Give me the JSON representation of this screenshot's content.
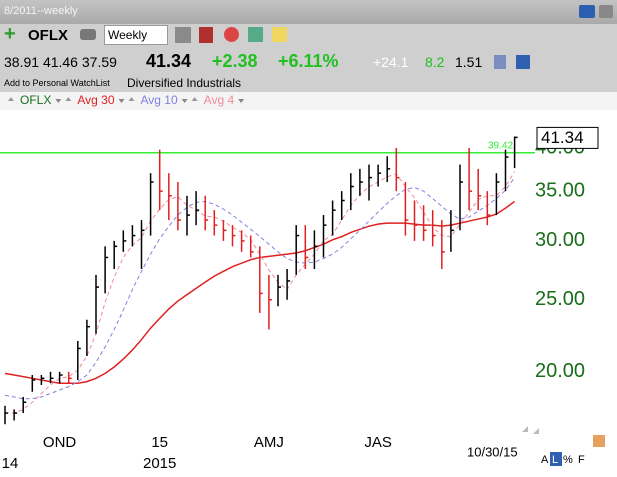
{
  "header": {
    "title": "8/2011--weekly",
    "period": "Weekly",
    "symbol": "OFLX",
    "open": "38.91",
    "high": "41.46",
    "low": "37.59",
    "last": "41.34",
    "change": "+2.38",
    "change_pct": "+6.11%",
    "stat1": "+24.1",
    "stat2": "8.2",
    "stat3": "1.51",
    "watchlist": "Add to Personal WatchList",
    "industry": "Diversified Industrials"
  },
  "chart_data": {
    "type": "ohlc",
    "categories": [
      null,
      null,
      null,
      null,
      null,
      null,
      "OND",
      null,
      null,
      null,
      null,
      null,
      null,
      null,
      null,
      null,
      null,
      "15",
      null,
      null,
      null,
      null,
      null,
      null,
      null,
      null,
      null,
      null,
      null,
      "AMJ",
      null,
      null,
      null,
      null,
      null,
      null,
      null,
      null,
      null,
      null,
      null,
      "JAS",
      null,
      null,
      null,
      null,
      null,
      null,
      null,
      null,
      null,
      null,
      null,
      null,
      null,
      null,
      null
    ],
    "category_years": [
      "14",
      null,
      null,
      null,
      null,
      null,
      null,
      null,
      null,
      null,
      null,
      null,
      null,
      null,
      null,
      null,
      null,
      "2015",
      null,
      null,
      null,
      null,
      null,
      null,
      null,
      null,
      null,
      null,
      null,
      null,
      null,
      null,
      null,
      null,
      null,
      null,
      null,
      null,
      null,
      null,
      null,
      null,
      null,
      null,
      null,
      null,
      null,
      null,
      null,
      null,
      null,
      null,
      null,
      null,
      null,
      null,
      null
    ],
    "last_date": "10/30/15",
    "series": [
      {
        "name": "OFLX",
        "color": "#000000",
        "down_color": "#e02020",
        "high": [
          18.0,
          17.8,
          18.5,
          19.8,
          19.8,
          20.0,
          20.0,
          20.0,
          22.0,
          23.5,
          27.0,
          29.5,
          30.0,
          31.0,
          31.5,
          32.0,
          37.0,
          39.8,
          37.0,
          36.0,
          34.5,
          35.0,
          34.5,
          33.0,
          32.0,
          31.5,
          31.0,
          30.5,
          29.5,
          27.0,
          27.0,
          27.5,
          31.5,
          31.5,
          31.0,
          32.5,
          34.0,
          35.0,
          37.0,
          37.5,
          38.0,
          38.0,
          39.0,
          40.0,
          36.0,
          34.0,
          33.5,
          33.0,
          32.0,
          33.0,
          38.0,
          40.0,
          37.5,
          35.0,
          37.0,
          39.8,
          41.46
        ],
        "low": [
          17.0,
          17.2,
          17.6,
          18.8,
          19.2,
          19.3,
          19.3,
          19.3,
          19.5,
          21.0,
          22.5,
          25.5,
          27.5,
          29.0,
          29.5,
          27.5,
          30.5,
          33.0,
          32.0,
          31.0,
          30.5,
          31.5,
          31.0,
          30.5,
          30.0,
          29.5,
          29.0,
          28.5,
          24.0,
          22.8,
          24.5,
          25.0,
          27.0,
          27.5,
          27.5,
          28.5,
          30.5,
          32.0,
          33.0,
          34.5,
          34.0,
          35.5,
          36.0,
          35.0,
          30.5,
          30.0,
          30.0,
          29.5,
          27.5,
          29.0,
          31.0,
          33.0,
          33.0,
          31.5,
          32.5,
          35.0,
          37.59
        ],
        "close": [
          17.6,
          17.6,
          18.2,
          19.5,
          19.6,
          19.6,
          19.8,
          19.6,
          21.5,
          23.0,
          26.0,
          28.5,
          29.5,
          30.0,
          30.5,
          31.0,
          36.0,
          35.0,
          34.5,
          32.0,
          32.5,
          33.0,
          32.0,
          31.5,
          31.0,
          30.5,
          30.0,
          29.0,
          25.5,
          25.0,
          26.0,
          26.5,
          30.5,
          28.5,
          29.5,
          31.5,
          33.0,
          34.0,
          35.5,
          36.0,
          36.5,
          37.0,
          37.5,
          36.5,
          32.0,
          31.5,
          31.0,
          30.5,
          29.0,
          31.0,
          36.0,
          35.0,
          34.5,
          32.5,
          36.0,
          38.9,
          41.34
        ]
      },
      {
        "name": "Avg 30",
        "color": "#e02020",
        "dash": false,
        "values": [
          19.9,
          19.8,
          19.7,
          19.6,
          19.5,
          19.4,
          19.3,
          19.3,
          19.3,
          19.4,
          19.6,
          19.9,
          20.3,
          20.8,
          21.4,
          22.1,
          22.9,
          23.6,
          24.3,
          24.9,
          25.4,
          25.9,
          26.4,
          26.9,
          27.3,
          27.7,
          28.0,
          28.3,
          28.5,
          28.6,
          28.7,
          28.8,
          28.9,
          29.1,
          29.4,
          29.7,
          30.1,
          30.4,
          30.8,
          31.1,
          31.4,
          31.6,
          31.7,
          31.7,
          31.7,
          31.6,
          31.5,
          31.5,
          31.4,
          31.5,
          31.7,
          31.9,
          32.1,
          32.3,
          32.6,
          33.2,
          33.9
        ]
      },
      {
        "name": "Avg 10",
        "color": "#8080e0",
        "dash": true,
        "values": [
          18.6,
          18.5,
          18.4,
          18.4,
          18.5,
          18.7,
          18.9,
          19.1,
          19.4,
          19.8,
          20.6,
          21.6,
          22.8,
          24.2,
          25.8,
          27.3,
          28.8,
          30.2,
          31.4,
          32.5,
          33.3,
          33.8,
          33.9,
          33.6,
          33.1,
          32.5,
          31.8,
          31.1,
          30.4,
          29.7,
          29.0,
          28.4,
          28.1,
          28.0,
          28.1,
          28.4,
          28.8,
          29.4,
          30.2,
          31.0,
          31.9,
          32.8,
          33.7,
          34.5,
          35.2,
          35.4,
          35.0,
          34.2,
          33.4,
          32.6,
          32.1,
          32.3,
          32.9,
          33.5,
          34.2,
          35.1,
          36.5
        ]
      },
      {
        "name": "Avg 4",
        "color": "#f08a9a",
        "dash": true,
        "values": [
          17.6,
          17.6,
          17.8,
          18.2,
          18.7,
          19.2,
          19.6,
          19.7,
          20.1,
          21.0,
          22.5,
          24.8,
          26.8,
          28.5,
          29.6,
          30.3,
          31.9,
          33.1,
          34.1,
          34.4,
          33.5,
          33.0,
          32.4,
          32.3,
          31.9,
          31.3,
          30.8,
          30.1,
          28.8,
          27.4,
          26.4,
          25.8,
          27.0,
          27.9,
          28.8,
          30.0,
          30.6,
          32.0,
          33.5,
          34.6,
          35.5,
          36.0,
          36.6,
          36.9,
          35.5,
          34.3,
          32.8,
          31.3,
          30.5,
          30.4,
          31.6,
          32.8,
          34.1,
          34.5,
          34.5,
          35.5,
          37.2
        ]
      }
    ],
    "ylim": [
      16.7,
      43.9
    ],
    "log_scale": true,
    "yticks": [
      {
        "value": 20,
        "label": "20.00"
      },
      {
        "value": 25,
        "label": "25.00"
      },
      {
        "value": 30,
        "label": "30.00"
      },
      {
        "value": 35,
        "label": "35.00"
      },
      {
        "value": 40,
        "label": "40.00"
      }
    ],
    "reference_line": 39.42,
    "reference_color": "#33ee33",
    "last_price": 41.34
  },
  "footer": {
    "buttons": [
      "A",
      "L",
      "%",
      "F"
    ]
  }
}
